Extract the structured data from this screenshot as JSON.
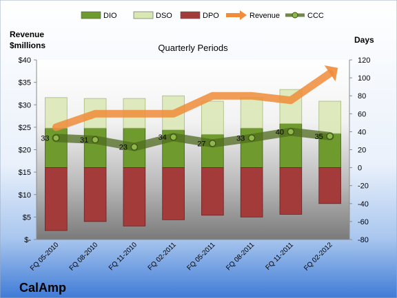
{
  "company": "CalAmp",
  "chart_data": {
    "type": "bar",
    "title": "Quarterly Periods",
    "ylabel_left": "Revenue $millions",
    "ylabel_right": "Days",
    "categories": [
      "FQ 05-2010",
      "FQ 08-2010",
      "FQ 11-2010",
      "FQ 02-2011",
      "FQ 05-2011",
      "FQ 08-2011",
      "FQ 11-2011",
      "FQ 02-2012"
    ],
    "left_axis": {
      "min": 0,
      "max": 40,
      "step": 5,
      "tick_labels": [
        "$-",
        "$5",
        "$10",
        "$15",
        "$20",
        "$25",
        "$30",
        "$35",
        "$40"
      ]
    },
    "right_axis": {
      "min": -80,
      "max": 120,
      "step": 20,
      "tick_labels": [
        "-80",
        "-60",
        "-40",
        "-20",
        "0",
        "20",
        "40",
        "60",
        "80",
        "100",
        "120"
      ]
    },
    "legend_position": "top",
    "grid": false,
    "series": [
      {
        "name": "DIO",
        "kind": "bar",
        "axis": "right",
        "color": "#6f9a2e",
        "values": [
          44,
          44,
          44,
          42,
          37,
          44,
          49,
          38
        ]
      },
      {
        "name": "DSO",
        "kind": "bar",
        "axis": "right",
        "color": "#d9e8b3",
        "values": [
          34,
          33,
          33,
          38,
          37,
          34,
          38,
          36
        ]
      },
      {
        "name": "DPO",
        "kind": "bar",
        "axis": "right",
        "color": "#a33b3b",
        "values": [
          -70,
          -60,
          -65,
          -58,
          -53,
          -55,
          -52,
          -40
        ]
      },
      {
        "name": "Revenue",
        "kind": "line",
        "axis": "left",
        "color": "#f08c3a",
        "values": [
          25,
          28,
          28,
          28,
          32,
          32,
          31,
          37
        ]
      },
      {
        "name": "CCC",
        "kind": "line",
        "axis": "right",
        "color": "#4f6b1f",
        "values": [
          33,
          31,
          23,
          34,
          27,
          33,
          40,
          35
        ],
        "data_labels": [
          "33",
          "31",
          "23",
          "34",
          "27",
          "33",
          "40",
          "35"
        ]
      }
    ]
  }
}
